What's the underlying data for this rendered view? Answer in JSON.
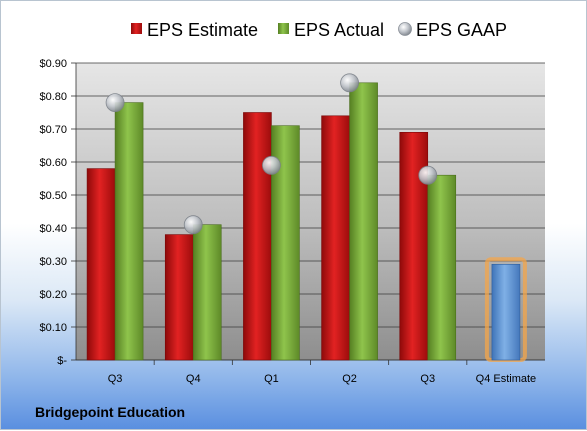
{
  "company": "Bridgepoint Education",
  "colors": {
    "estimate": "#d01414",
    "actual": "#7cb43a",
    "gaap": "#b8bcc4",
    "q4_estimate": "#5f98d8",
    "q4_estimate_glow": "#f4a64a"
  },
  "chart_data": {
    "type": "bar",
    "categories": [
      "Q3",
      "Q4",
      "Q1",
      "Q2",
      "Q3",
      "Q4 Estimate"
    ],
    "series": [
      {
        "name": "EPS Estimate",
        "values": [
          0.58,
          0.38,
          0.75,
          0.74,
          0.69,
          null
        ]
      },
      {
        "name": "EPS Actual",
        "values": [
          0.78,
          0.41,
          0.71,
          0.84,
          0.56,
          0.29
        ]
      },
      {
        "name": "EPS GAAP",
        "type": "scatter",
        "values": [
          0.78,
          0.41,
          0.59,
          0.84,
          0.56,
          null
        ]
      }
    ],
    "yticks": [
      "$-",
      "$0.10",
      "$0.20",
      "$0.30",
      "$0.40",
      "$0.50",
      "$0.60",
      "$0.70",
      "$0.80",
      "$0.90"
    ],
    "ylim": [
      0,
      0.9
    ],
    "legend_position": "top",
    "grid": true
  }
}
